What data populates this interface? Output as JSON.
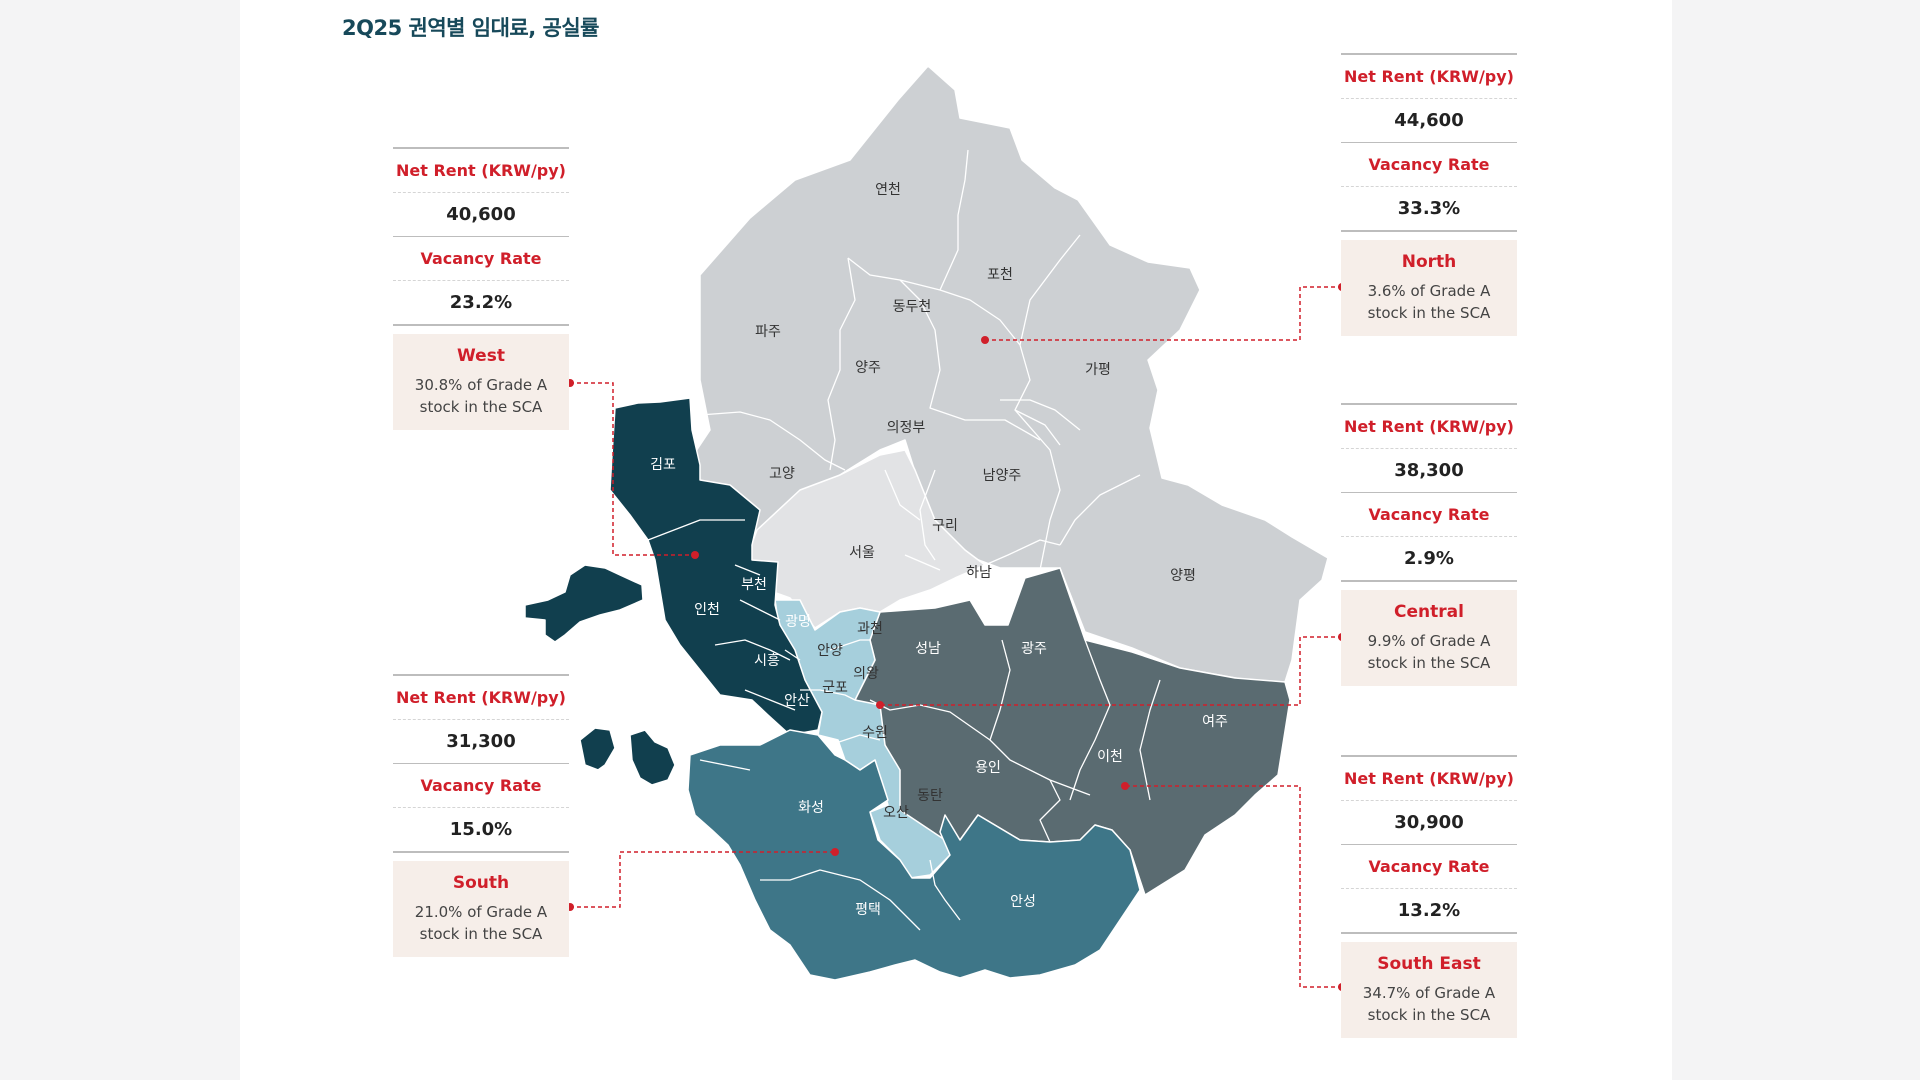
{
  "title": "2Q25 권역별 임대료, 공실률",
  "labels": {
    "net_rent": "Net Rent (KRW/py)",
    "vacancy_rate": "Vacancy Rate"
  },
  "colors": {
    "north": "#cdd0d3",
    "central": "#e2e3e5",
    "west": "#113f4e",
    "gbd": "#a6cfdc",
    "south": "#3e7688",
    "southeast": "#5a6b71",
    "accent": "#d01f2a",
    "region_box": "#f6eee9"
  },
  "regions": {
    "west": {
      "name": "West",
      "net_rent": "40,600",
      "vacancy_rate": "23.2%",
      "share_line1": "30.8% of Grade A",
      "share_line2": "stock in the SCA"
    },
    "north": {
      "name": "North",
      "net_rent": "44,600",
      "vacancy_rate": "33.3%",
      "share_line1": "3.6% of Grade A",
      "share_line2": "stock in the SCA"
    },
    "central": {
      "name": "Central",
      "net_rent": "38,300",
      "vacancy_rate": "2.9%",
      "share_line1": "9.9% of Grade A",
      "share_line2": "stock in the SCA"
    },
    "south": {
      "name": "South",
      "net_rent": "31,300",
      "vacancy_rate": "15.0%",
      "share_line1": "21.0% of Grade A",
      "share_line2": "stock in the SCA"
    },
    "southeast": {
      "name": "South East",
      "net_rent": "30,900",
      "vacancy_rate": "13.2%",
      "share_line1": "34.7% of Grade A",
      "share_line2": "stock in the SCA"
    }
  },
  "districts": {
    "yeoncheon": "연천",
    "pocheon": "포천",
    "dongducheon": "동두천",
    "paju": "파주",
    "yangju": "양주",
    "gapyeong": "가평",
    "uijeongbu": "의정부",
    "goyang": "고양",
    "namyangju": "남양주",
    "gimpo": "김포",
    "guri": "구리",
    "seoul": "서울",
    "hanam": "하남",
    "yangpyeong": "양평",
    "bucheon": "부천",
    "incheon": "인천",
    "gwangmyeong": "광명",
    "gwacheon": "과천",
    "seongnam": "성남",
    "gwangju": "광주",
    "anyang": "안양",
    "siheung": "시흥",
    "uiwang": "의왕",
    "gunpo": "군포",
    "ansan": "안산",
    "suwon": "수원",
    "yeoju": "여주",
    "icheon": "이천",
    "yongin": "용인",
    "dongtan": "동탄",
    "hwaseong": "화성",
    "osan": "오산",
    "pyeongtaek": "평택",
    "anseong": "안성"
  }
}
